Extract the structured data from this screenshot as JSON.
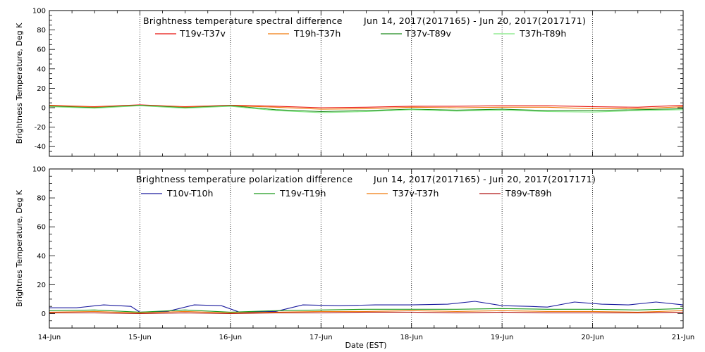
{
  "chart_data": [
    {
      "type": "line",
      "title": "Brightness temperature spectral difference",
      "date_range": "Jun 14, 2017(2017165) - Jun 20, 2017(2017171)",
      "ylabel": "Brightness Temperature, Deg K",
      "xlabel": "",
      "ylim": [
        -50,
        100
      ],
      "yticks": [
        -40,
        -20,
        0,
        20,
        40,
        60,
        80,
        100
      ],
      "xlim": [
        0,
        7
      ],
      "grid": "vertical dotted at each day",
      "legend_position": "top",
      "series": [
        {
          "name": "T19v-T37v",
          "color": "#e8120c",
          "x": [
            0,
            0.5,
            1,
            1.5,
            2,
            2.5,
            3,
            3.5,
            4,
            4.5,
            5,
            5.5,
            6,
            6.5,
            7
          ],
          "values": [
            2.5,
            1,
            3,
            1,
            2.5,
            1.5,
            0,
            0.5,
            1.5,
            1.5,
            2,
            2,
            1,
            0.5,
            2.5
          ]
        },
        {
          "name": "T19h-T37h",
          "color": "#f07b0c",
          "x": [
            0,
            0.5,
            1,
            1.5,
            2,
            2.5,
            3,
            3.5,
            4,
            4.5,
            5,
            5.5,
            6,
            6.5,
            7
          ],
          "values": [
            2,
            0.5,
            2.5,
            0.5,
            2,
            0.5,
            -1.5,
            -1,
            0.5,
            0,
            0.5,
            0.5,
            -1,
            -1,
            1
          ]
        },
        {
          "name": "T37v-T89v",
          "color": "#1c8a1c",
          "x": [
            0,
            0.5,
            1,
            1.5,
            2,
            2.5,
            3,
            3.5,
            4,
            4.5,
            5,
            5.5,
            6,
            6.5,
            7
          ],
          "values": [
            1.5,
            0,
            2.5,
            0,
            2,
            -2,
            -4,
            -3,
            -1.5,
            -2.5,
            -1.5,
            -3,
            -3,
            -2,
            -1
          ]
        },
        {
          "name": "T37h-T89h",
          "color": "#7ee87e",
          "x": [
            0,
            0.5,
            1,
            1.5,
            2,
            2.5,
            3,
            3.5,
            4,
            4.5,
            5,
            5.5,
            6,
            6.5,
            7
          ],
          "values": [
            1,
            -0.5,
            2,
            -0.5,
            1.5,
            -3,
            -5,
            -4,
            -2,
            -3.5,
            -2.5,
            -4,
            -4.5,
            -3,
            -2
          ]
        }
      ]
    },
    {
      "type": "line",
      "title": "Brightness temperature polarization difference",
      "date_range": "Jun 14, 2017(2017165) - Jun 20, 2017(2017171)",
      "ylabel": "Brightnes Temperature, Deg K",
      "xlabel": "Date (EST)",
      "ylim": [
        -10,
        100
      ],
      "yticks": [
        0,
        20,
        40,
        60,
        80,
        100
      ],
      "xlim": [
        0,
        7
      ],
      "categories": [
        "14-Jun",
        "15-Jun",
        "16-Jun",
        "17-Jun",
        "18-Jun",
        "19-Jun",
        "20-Jun",
        "21-Jun"
      ],
      "grid": "vertical dotted at each day",
      "legend_position": "top",
      "series": [
        {
          "name": "T10v-T10h",
          "color": "#1a1a9e",
          "x": [
            0,
            0.3,
            0.6,
            0.9,
            1.0,
            1.3,
            1.6,
            1.9,
            2.1,
            2.5,
            2.8,
            3.2,
            3.6,
            4.0,
            4.4,
            4.7,
            5.0,
            5.3,
            5.5,
            5.8,
            6.1,
            6.4,
            6.7,
            7.0
          ],
          "values": [
            4,
            4,
            6,
            5,
            1,
            1.5,
            6,
            5.5,
            1,
            1.5,
            6,
            5.5,
            6,
            6,
            6.5,
            8.5,
            5.5,
            5,
            4.5,
            8,
            6.5,
            6,
            8,
            6
          ]
        },
        {
          "name": "T19v-T19h",
          "color": "#1c9a1c",
          "x": [
            0,
            0.5,
            1,
            1.5,
            2,
            2.5,
            3,
            3.5,
            4,
            4.5,
            5,
            5.5,
            6,
            6.5,
            7
          ],
          "values": [
            2,
            2.5,
            1,
            2.5,
            1,
            2,
            2.5,
            3,
            3,
            3,
            3.5,
            3,
            3,
            2.5,
            3.5
          ]
        },
        {
          "name": "T37v-T37h",
          "color": "#f07b0c",
          "x": [
            0,
            0.5,
            1,
            1.5,
            2,
            2.5,
            3,
            3.5,
            4,
            4.5,
            5,
            5.5,
            6,
            6.5,
            7
          ],
          "values": [
            1,
            1.5,
            0.5,
            1.5,
            0.5,
            1,
            1.5,
            1.5,
            2,
            1.5,
            2,
            1.5,
            1.5,
            1,
            2
          ]
        },
        {
          "name": "T89v-T89h",
          "color": "#b01414",
          "x": [
            0,
            0.5,
            1,
            1.5,
            2,
            2.5,
            3,
            3.5,
            4,
            4.5,
            5,
            5.5,
            6,
            6.5,
            7
          ],
          "values": [
            0.5,
            0.5,
            0,
            0.5,
            0,
            0.5,
            0.5,
            1,
            1,
            0.5,
            1,
            0.5,
            0.5,
            0.5,
            1
          ]
        }
      ]
    }
  ]
}
